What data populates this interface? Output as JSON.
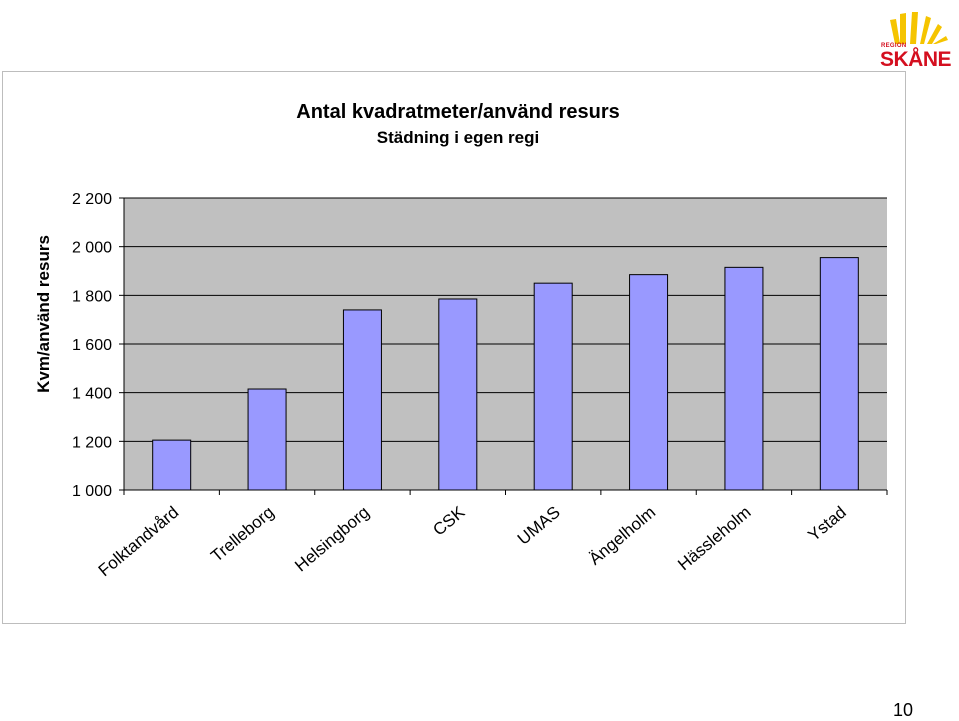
{
  "chart_data": {
    "type": "bar",
    "title": "Antal kvadratmeter/använd resurs",
    "subtitle": "Städning i egen regi",
    "xlabel": "",
    "ylabel": "Kvm/använd resurs",
    "categories": [
      "Folktandvård",
      "Trelleborg",
      "Helsingborg",
      "CSK",
      "UMAS",
      "Ängelholm",
      "Hässleholm",
      "Ystad"
    ],
    "values": [
      1205,
      1415,
      1740,
      1785,
      1850,
      1885,
      1915,
      1955
    ],
    "ylim": [
      1000,
      2200
    ],
    "yticks": [
      1000,
      1200,
      1400,
      1600,
      1800,
      2000,
      2200
    ],
    "ytick_labels": [
      "1 000",
      "1 200",
      "1 400",
      "1 600",
      "1 800",
      "2 000",
      "2 200"
    ],
    "grid": true,
    "colors": {
      "bar": "#9999ff",
      "plot_bg": "#c0c0c0",
      "grid": "#000000"
    }
  },
  "logo": {
    "region_text": "REGION",
    "name_text": "SKÅNE",
    "color": "#d40f1f",
    "sun_color": "#f5c400"
  },
  "page_number": "10"
}
